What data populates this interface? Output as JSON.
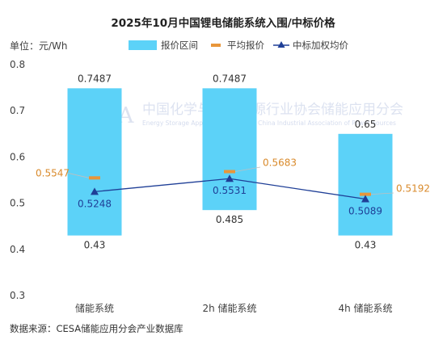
{
  "chart_data": {
    "type": "bar",
    "title": "2025年10月中国锂电储能系统入围/中标价格",
    "ylabel": "单位：元/Wh",
    "ylim": [
      0.3,
      0.8
    ],
    "yticks": [
      "0.3",
      "0.4",
      "0.5",
      "0.6",
      "0.7",
      "0.8"
    ],
    "grid": false,
    "legend_position": "top",
    "categories": [
      "储能系统",
      "2h 储能系统",
      "4h 储能系统"
    ],
    "series": [
      {
        "name": "报价区间",
        "type": "range-bar",
        "color": "#5CD2F8",
        "low": [
          0.43,
          0.485,
          0.43
        ],
        "high": [
          0.7487,
          0.7487,
          0.65
        ],
        "low_labels": [
          "0.43",
          "0.485",
          "0.43"
        ],
        "high_labels": [
          "0.7487",
          "0.7487",
          "0.65"
        ]
      },
      {
        "name": "平均报价",
        "type": "marker",
        "color": "#E8963A",
        "values": [
          0.5547,
          0.5683,
          0.5192
        ],
        "labels": [
          "0.5547",
          "0.5683",
          "0.5192"
        ]
      },
      {
        "name": "中标加权均价",
        "type": "line",
        "color": "#1F3F97",
        "values": [
          0.5248,
          0.5531,
          0.5089
        ],
        "labels": [
          "0.5248",
          "0.5531",
          "0.5089"
        ]
      }
    ],
    "source": "数据来源：CESA储能应用分会产业数据库"
  },
  "watermark": {
    "logo": "CESA",
    "cn": "中国化学与物理电源行业协会储能应用分会",
    "en": "Energy Storage Application Branch of China Industrial Association of Power Sources"
  }
}
